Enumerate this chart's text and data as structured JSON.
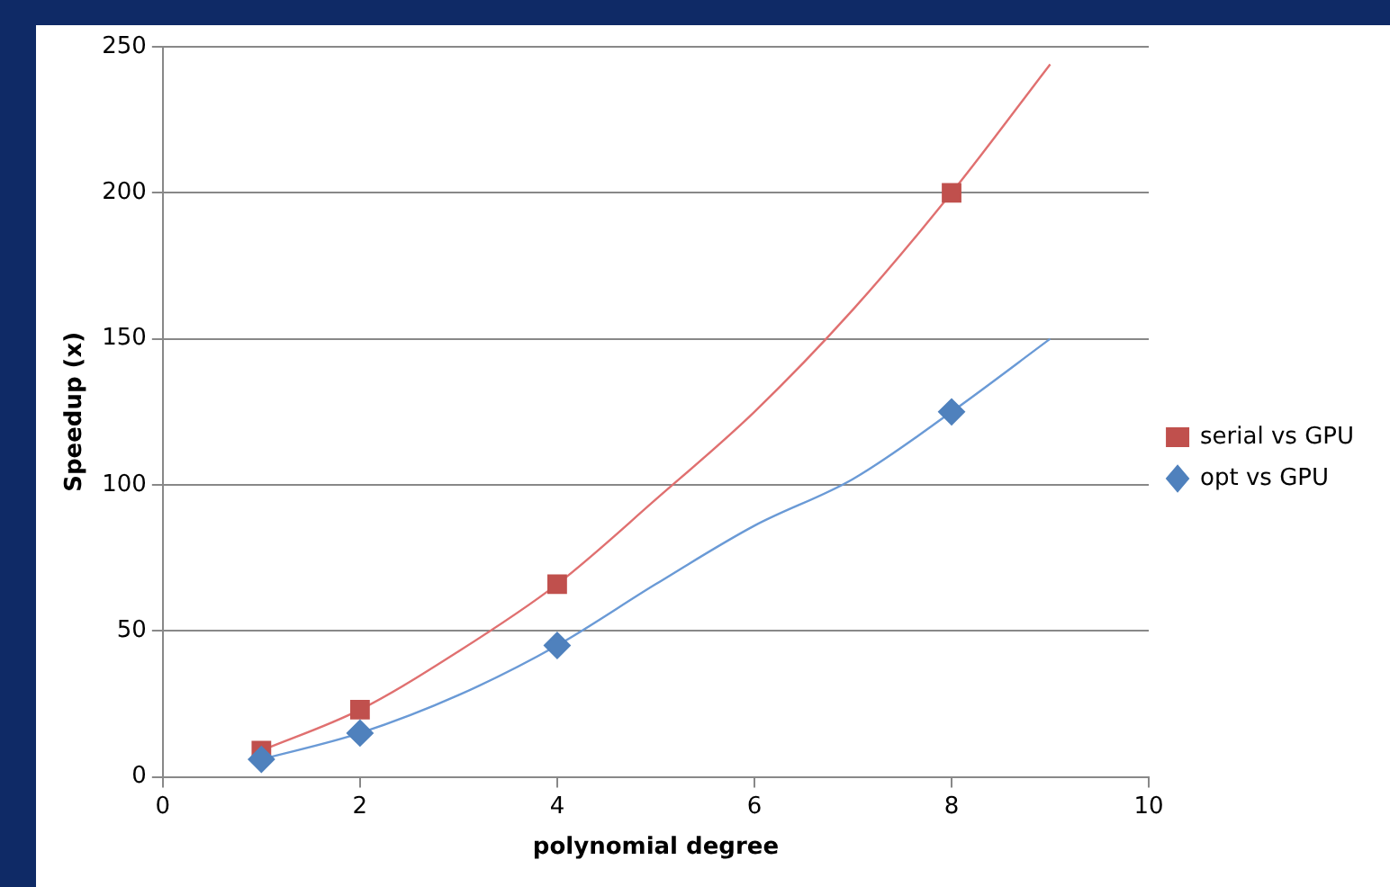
{
  "chart_data": {
    "type": "scatter",
    "xlabel": "polynomial degree",
    "ylabel": "Speedup (x)",
    "xlim": [
      0,
      10
    ],
    "xticks": [
      0,
      2,
      4,
      6,
      8,
      10
    ],
    "ylim": [
      0,
      250
    ],
    "yticks": [
      0,
      50,
      100,
      150,
      200,
      250
    ],
    "grid": "y",
    "legend": "right",
    "series": [
      {
        "name": "serial vs GPU",
        "color": "#c0504d",
        "marker": "square",
        "x": [
          1,
          2,
          4,
          8
        ],
        "values": [
          9,
          23,
          66,
          200
        ]
      },
      {
        "name": "opt vs GPU",
        "color": "#4f81bd",
        "marker": "diamond",
        "x": [
          1,
          2,
          4,
          8
        ],
        "values": [
          6,
          15,
          45,
          125
        ]
      },
      {
        "type": "line",
        "color": "#e07070",
        "marker": "none",
        "x": [
          1,
          2,
          3,
          4,
          5,
          6,
          7,
          8,
          9
        ],
        "values": [
          9,
          23,
          43,
          66,
          95,
          125,
          160,
          200,
          244
        ]
      },
      {
        "type": "line",
        "color": "#6a9ad6",
        "marker": "none",
        "x": [
          1,
          2,
          3,
          4,
          5,
          6,
          7,
          8,
          9
        ],
        "values": [
          6,
          15,
          28,
          45,
          66,
          86,
          102,
          125,
          150
        ]
      }
    ]
  }
}
